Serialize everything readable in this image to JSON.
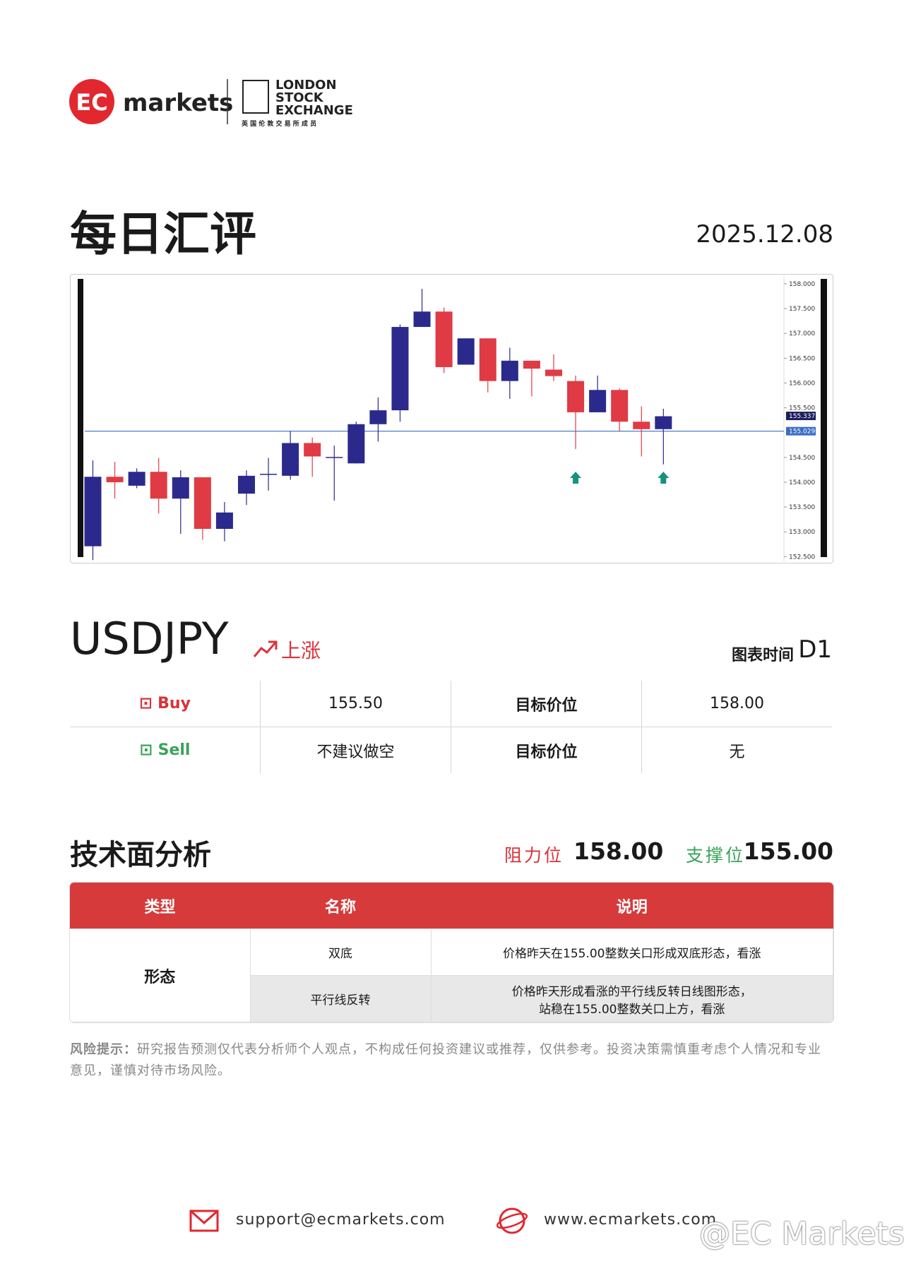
{
  "header": {
    "logo_ec": "EC",
    "logo_markets": "markets",
    "lse_lines": [
      "LONDON",
      "STOCK",
      "EXCHANGE"
    ],
    "lse_member": "英 国 伦 敦 交 易 所 成 员"
  },
  "title": "每日汇评",
  "date": "2025.12.08",
  "chart_data": {
    "type": "candlestick",
    "up_color": "#2b2a8c",
    "down_color": "#e03a45",
    "signal_color": "#16917f",
    "open": [
      152.71,
      154.11,
      153.93,
      154.21,
      153.67,
      154.1,
      153.06,
      153.77,
      154.16,
      154.13,
      154.79,
      154.51,
      154.38,
      155.17,
      155.45,
      157.13,
      157.44,
      156.37,
      156.9,
      156.04,
      156.45,
      156.27,
      156.04,
      155.41,
      155.86,
      155.22,
      155.07
    ],
    "high": [
      154.44,
      154.41,
      154.28,
      154.49,
      154.24,
      154.1,
      153.6,
      154.24,
      154.49,
      155.03,
      154.9,
      154.74,
      155.22,
      155.71,
      157.18,
      157.9,
      157.52,
      156.9,
      156.9,
      156.71,
      156.45,
      156.58,
      156.15,
      156.15,
      155.89,
      155.53,
      155.48
    ],
    "low": [
      152.43,
      153.67,
      153.88,
      153.37,
      152.96,
      152.84,
      152.81,
      153.54,
      153.83,
      154.05,
      154.11,
      153.63,
      154.38,
      154.82,
      155.22,
      157.13,
      156.2,
      156.37,
      155.81,
      155.68,
      155.73,
      156.04,
      154.67,
      155.41,
      155.03,
      154.52,
      154.36
    ],
    "close": [
      154.11,
      154.0,
      154.21,
      153.67,
      154.1,
      153.06,
      153.39,
      154.13,
      154.17,
      154.79,
      154.52,
      154.51,
      155.17,
      155.45,
      157.13,
      157.44,
      156.32,
      156.9,
      156.04,
      156.45,
      156.29,
      156.14,
      155.41,
      155.86,
      155.22,
      155.07,
      155.33
    ],
    "ylim": [
      152.42,
      158.07
    ],
    "yticks": [
      {
        "value": 158,
        "label": "158.000"
      },
      {
        "value": 157.5,
        "label": "157.500"
      },
      {
        "value": 157,
        "label": "157.000"
      },
      {
        "value": 156.5,
        "label": "156.500"
      },
      {
        "value": 156,
        "label": "156.000"
      },
      {
        "value": 155.5,
        "label": "155.500"
      },
      {
        "value": 154.5,
        "label": "154.500"
      },
      {
        "value": 154,
        "label": "154.000"
      },
      {
        "value": 153.5,
        "label": "153.500"
      },
      {
        "value": 153,
        "label": "153.000"
      },
      {
        "value": 152.5,
        "label": "152.500"
      }
    ],
    "last_price": {
      "value": 155.337,
      "label": "155.337",
      "color": "#1d1f5e"
    },
    "reference_line": {
      "value": 155.029,
      "label": "155.029",
      "color": "#3b6cc5"
    },
    "up_signal_indices": [
      22,
      26
    ]
  },
  "symbol": "USDJPY",
  "trend": "上涨",
  "timeframe_label": "图表时间",
  "timeframe": "D1",
  "trade_table": {
    "rows": [
      [
        "Buy",
        "155.50",
        "目标价位",
        "158.00"
      ],
      [
        "Sell",
        "不建议做空",
        "目标价位",
        "无"
      ]
    ]
  },
  "analysis": {
    "title": "技术面分析",
    "resistance_label": "阻力位",
    "resistance": "158.00",
    "support_label": "支撑位",
    "support": "155.00",
    "headers": [
      "类型",
      "名称",
      "说明"
    ],
    "category": "形态",
    "rows": [
      {
        "name": "双底",
        "lines": [
          "价格昨天在155.00整数关口形成双底形态，看涨"
        ]
      },
      {
        "name": "平行线反转",
        "lines": [
          "价格昨天形成看涨的平行线反转日线图形态，",
          "站稳在155.00整数关口上方，看涨"
        ]
      }
    ]
  },
  "disclaimer": {
    "label": "风险提示：",
    "text": "研究报告预测仅代表分析师个人观点，不构成任何投资建议或推荐，仅供参考。投资决策需慎重考虑个人情况和专业意见，谨慎对待市场风险。"
  },
  "footer": {
    "email": "support@ecmarkets.com",
    "website": "www.ecmarkets.com",
    "watermark": "@EC Markets"
  }
}
